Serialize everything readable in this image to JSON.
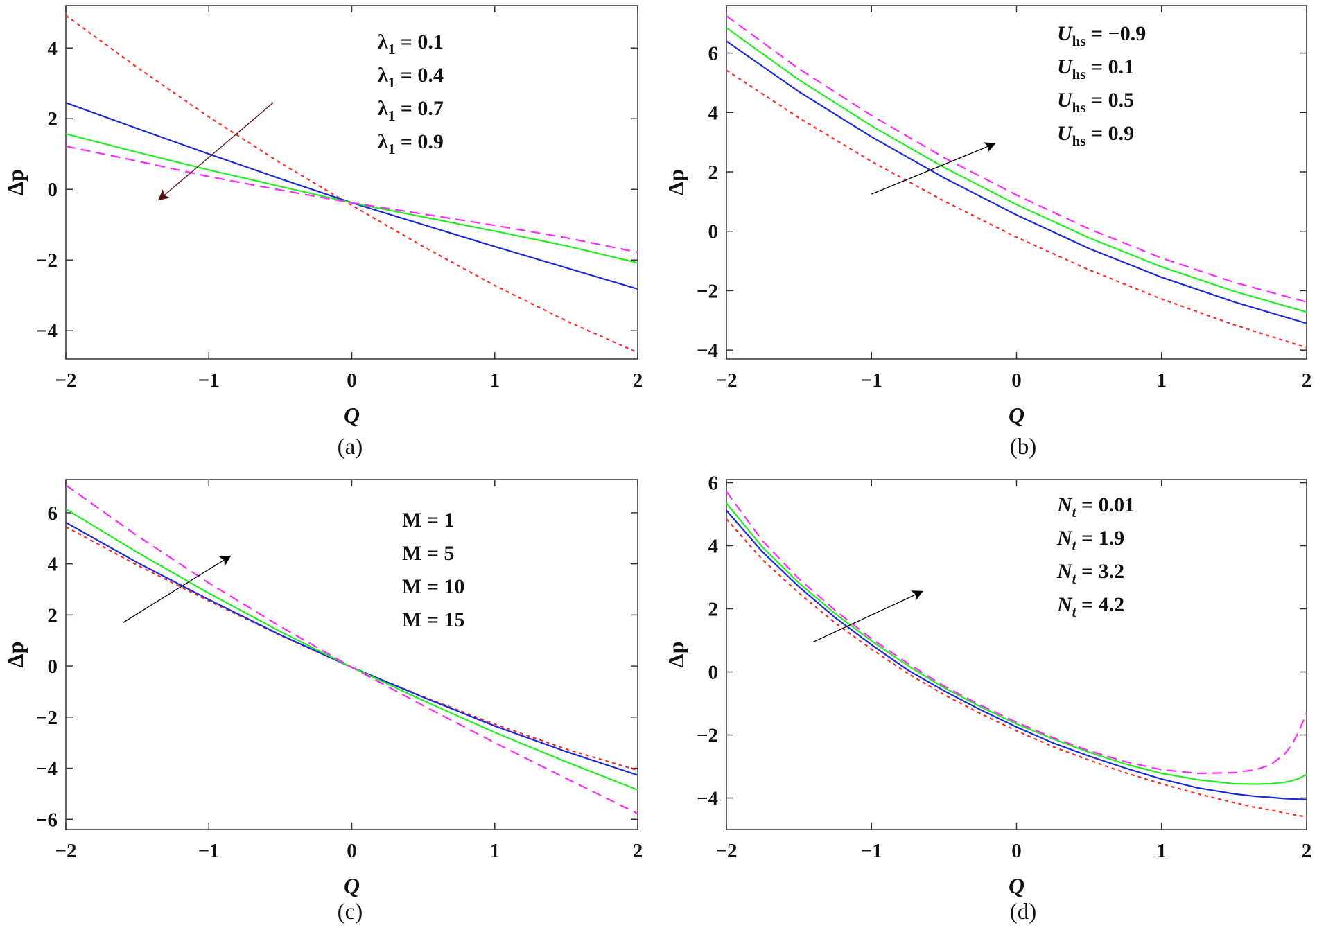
{
  "chart_data": [
    {
      "id": "a",
      "type": "line",
      "caption": "(a)",
      "xlabel": "Q",
      "ylabel": "Δp",
      "xlim": [
        -2,
        2
      ],
      "ylim": [
        -4.8,
        5.2
      ],
      "xticks": [
        -2,
        -1,
        0,
        1,
        2
      ],
      "yticks": [
        -4,
        -2,
        0,
        2,
        4
      ],
      "x": [
        -2,
        -1.5,
        -1,
        -0.5,
        0,
        0.5,
        1,
        1.5,
        2
      ],
      "legend": {
        "symbol": "λ",
        "sub": "1",
        "entries": [
          "0.1",
          "0.4",
          "0.7",
          "0.9"
        ],
        "italic_symbol": false
      },
      "arrow": {
        "from": [
          -0.55,
          2.45
        ],
        "to": [
          -1.35,
          -0.3
        ],
        "color": "#5a1010"
      },
      "series": [
        {
          "name": "λ1 = 0.1",
          "color": "#ff2a2a",
          "style": "dotted",
          "values": [
            4.92,
            3.45,
            2.05,
            0.75,
            -0.45,
            -1.62,
            -2.72,
            -3.72,
            -4.62
          ]
        },
        {
          "name": "λ1 = 0.4",
          "color": "#1a2bdc",
          "style": "solid",
          "values": [
            2.45,
            1.72,
            1.0,
            0.3,
            -0.38,
            -1.0,
            -1.62,
            -2.22,
            -2.82
          ]
        },
        {
          "name": "λ1 = 0.7",
          "color": "#22ee22",
          "style": "solid",
          "values": [
            1.57,
            1.05,
            0.55,
            0.08,
            -0.38,
            -0.78,
            -1.18,
            -1.6,
            -2.08
          ]
        },
        {
          "name": "λ1 = 0.9",
          "color": "#ff2aff",
          "style": "dashed",
          "values": [
            1.22,
            0.8,
            0.36,
            -0.02,
            -0.38,
            -0.7,
            -1.02,
            -1.37,
            -1.78
          ]
        }
      ]
    },
    {
      "id": "b",
      "type": "line",
      "caption": "(b)",
      "xlabel": "Q",
      "ylabel": "Δp",
      "xlim": [
        -2,
        2
      ],
      "ylim": [
        -4.3,
        7.6
      ],
      "xticks": [
        -2,
        -1,
        0,
        1,
        2
      ],
      "yticks": [
        -4,
        -2,
        0,
        2,
        4,
        6
      ],
      "x": [
        -2,
        -1.5,
        -1,
        -0.5,
        0,
        0.5,
        1,
        1.5,
        2
      ],
      "legend": {
        "symbol": "U",
        "sub": "hs",
        "entries": [
          "−0.9",
          "0.1",
          "0.5",
          "0.9"
        ],
        "italic_symbol": true
      },
      "arrow": {
        "from": [
          -1.0,
          1.25
        ],
        "to": [
          -0.15,
          2.95
        ],
        "color": "#000000"
      },
      "series": [
        {
          "name": "Uhs = −0.9",
          "color": "#ff2a2a",
          "style": "dotted",
          "values": [
            5.42,
            3.82,
            2.35,
            1.02,
            -0.2,
            -1.3,
            -2.28,
            -3.15,
            -3.92
          ]
        },
        {
          "name": "Uhs = 0.1",
          "color": "#1a2bdc",
          "style": "solid",
          "values": [
            6.4,
            4.7,
            3.18,
            1.8,
            0.55,
            -0.58,
            -1.55,
            -2.38,
            -3.1
          ]
        },
        {
          "name": "Uhs = 0.5",
          "color": "#22ee22",
          "style": "solid",
          "values": [
            6.85,
            5.1,
            3.55,
            2.15,
            0.9,
            -0.22,
            -1.2,
            -2.02,
            -2.72
          ]
        },
        {
          "name": "Uhs = 0.9",
          "color": "#ff2aff",
          "style": "dashed",
          "values": [
            7.25,
            5.47,
            3.9,
            2.48,
            1.22,
            0.08,
            -0.9,
            -1.72,
            -2.38
          ]
        }
      ]
    },
    {
      "id": "c",
      "type": "line",
      "caption": "(c)",
      "xlabel": "Q",
      "ylabel": "Δp",
      "xlim": [
        -2,
        2
      ],
      "ylim": [
        -6.4,
        7.3
      ],
      "xticks": [
        -2,
        -1,
        0,
        1,
        2
      ],
      "yticks": [
        -6,
        -4,
        -2,
        0,
        2,
        4,
        6
      ],
      "x": [
        -2,
        -1.5,
        -1,
        -0.5,
        0,
        0.5,
        1,
        1.5,
        2
      ],
      "legend": {
        "symbol": "M",
        "sub": "",
        "entries": [
          "1",
          "5",
          "10",
          "15"
        ],
        "italic_symbol": false
      },
      "arrow": {
        "from": [
          -1.6,
          1.7
        ],
        "to": [
          -0.85,
          4.3
        ],
        "color": "#000000"
      },
      "series": [
        {
          "name": "M = 1",
          "color": "#ff2a2a",
          "style": "dotted",
          "values": [
            5.45,
            3.95,
            2.55,
            1.2,
            -0.05,
            -1.2,
            -2.28,
            -3.25,
            -4.08
          ]
        },
        {
          "name": "M = 5",
          "color": "#1a2bdc",
          "style": "solid",
          "values": [
            5.62,
            4.05,
            2.6,
            1.22,
            -0.05,
            -1.22,
            -2.35,
            -3.35,
            -4.27
          ]
        },
        {
          "name": "M = 10",
          "color": "#22ee22",
          "style": "solid",
          "values": [
            6.15,
            4.45,
            2.85,
            1.35,
            -0.05,
            -1.35,
            -2.6,
            -3.75,
            -4.85
          ]
        },
        {
          "name": "M = 15",
          "color": "#ff2aff",
          "style": "dashed",
          "values": [
            7.08,
            5.1,
            3.25,
            1.55,
            -0.05,
            -1.55,
            -3.0,
            -4.4,
            -5.78
          ]
        }
      ]
    },
    {
      "id": "d",
      "type": "line",
      "caption": "(d)",
      "xlabel": "Q",
      "ylabel": "Δp",
      "xlim": [
        -2,
        2
      ],
      "ylim": [
        -5.0,
        6.1
      ],
      "xticks": [
        -2,
        -1,
        0,
        1,
        2
      ],
      "yticks": [
        -4,
        -2,
        0,
        2,
        4,
        6
      ],
      "x": [
        -2,
        -1.75,
        -1.5,
        -1.25,
        -1,
        -0.75,
        -0.5,
        -0.25,
        0,
        0.25,
        0.5,
        0.75,
        1,
        1.25,
        1.5,
        1.65,
        1.75,
        1.85,
        1.9,
        1.95,
        2
      ],
      "legend": {
        "symbol": "N",
        "sub": "t",
        "entries": [
          "0.01",
          "1.9",
          "3.2",
          "4.2"
        ],
        "italic_symbol": true
      },
      "arrow": {
        "from": [
          -1.4,
          0.95
        ],
        "to": [
          -0.65,
          2.55
        ],
        "color": "#000000"
      },
      "series": [
        {
          "name": "Nt = 0.01",
          "color": "#ff2a2a",
          "style": "dotted",
          "values": [
            4.85,
            3.55,
            2.5,
            1.55,
            0.72,
            -0.05,
            -0.72,
            -1.32,
            -1.87,
            -2.37,
            -2.8,
            -3.2,
            -3.55,
            -3.87,
            -4.15,
            -4.3,
            -4.38,
            -4.48,
            -4.52,
            -4.56,
            -4.6
          ]
        },
        {
          "name": "Nt = 1.9",
          "color": "#1a2bdc",
          "style": "solid",
          "values": [
            5.12,
            3.8,
            2.7,
            1.72,
            0.86,
            0.06,
            -0.6,
            -1.2,
            -1.75,
            -2.25,
            -2.67,
            -3.05,
            -3.4,
            -3.68,
            -3.87,
            -3.95,
            -3.98,
            -4.02,
            -4.03,
            -4.04,
            -4.05
          ]
        },
        {
          "name": "Nt = 3.2",
          "color": "#22ee22",
          "style": "solid",
          "values": [
            5.35,
            3.95,
            2.82,
            1.85,
            0.98,
            0.2,
            -0.5,
            -1.1,
            -1.65,
            -2.12,
            -2.55,
            -2.92,
            -3.22,
            -3.42,
            -3.55,
            -3.56,
            -3.55,
            -3.5,
            -3.45,
            -3.38,
            -3.25
          ]
        },
        {
          "name": "Nt = 4.2",
          "color": "#ff2aff",
          "style": "dashed",
          "values": [
            5.72,
            4.15,
            2.95,
            1.95,
            1.05,
            0.27,
            -0.45,
            -1.05,
            -1.6,
            -2.08,
            -2.5,
            -2.85,
            -3.1,
            -3.22,
            -3.2,
            -3.1,
            -2.95,
            -2.6,
            -2.3,
            -1.85,
            -1.3
          ]
        }
      ]
    }
  ]
}
